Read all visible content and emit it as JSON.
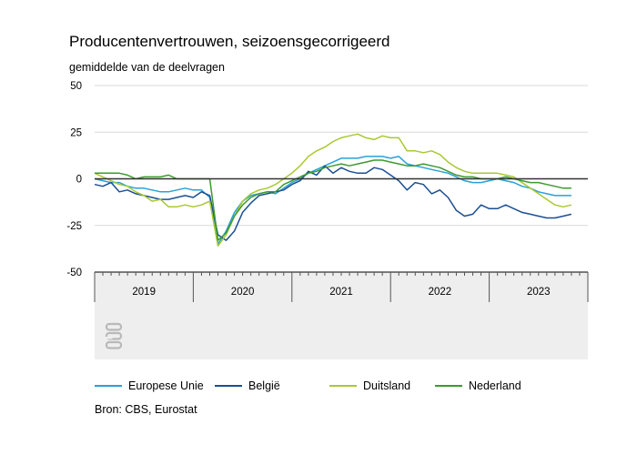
{
  "colors": {
    "europese_unie": "#29a1d9",
    "belgie": "#1c4f93",
    "duitsland": "#a8c931",
    "nederland": "#3d9a2f",
    "zero_line": "#333333",
    "grid": "#d9d9d9",
    "axis_band": "#eeeeee"
  },
  "logo_icon": "cbs-logo-icon",
  "chart_data": {
    "type": "line",
    "title": "Producentenvertrouwen, seizoensgecorrigeerd",
    "ylabel": "gemiddelde van de deelvragen",
    "ylim": [
      -50,
      50
    ],
    "yticks": [
      50,
      25,
      0,
      -25,
      -50
    ],
    "xlim": [
      "2019-01",
      "2023-12"
    ],
    "year_labels": [
      "2019",
      "2020",
      "2021",
      "2022",
      "2023"
    ],
    "source": "Bron: CBS, Eurostat",
    "legend_position": "bottom",
    "series": [
      {
        "name": "Europese Unie",
        "color_key": "europese_unie",
        "values": [
          [
            "2019-01",
            0
          ],
          [
            "2019-02",
            -1
          ],
          [
            "2019-03",
            -2
          ],
          [
            "2019-04",
            -2
          ],
          [
            "2019-05",
            -4
          ],
          [
            "2019-06",
            -5
          ],
          [
            "2019-07",
            -5
          ],
          [
            "2019-08",
            -6
          ],
          [
            "2019-09",
            -7
          ],
          [
            "2019-10",
            -7
          ],
          [
            "2019-11",
            -6
          ],
          [
            "2019-12",
            -5
          ],
          [
            "2020-01",
            -6
          ],
          [
            "2020-02",
            -6
          ],
          [
            "2020-03",
            -10
          ],
          [
            "2020-04",
            -35
          ],
          [
            "2020-05",
            -28
          ],
          [
            "2020-06",
            -18
          ],
          [
            "2020-07",
            -12
          ],
          [
            "2020-08",
            -9
          ],
          [
            "2020-09",
            -8
          ],
          [
            "2020-10",
            -7
          ],
          [
            "2020-11",
            -8
          ],
          [
            "2020-12",
            -5
          ],
          [
            "2021-01",
            -2
          ],
          [
            "2021-02",
            0
          ],
          [
            "2021-03",
            3
          ],
          [
            "2021-04",
            5
          ],
          [
            "2021-05",
            7
          ],
          [
            "2021-06",
            9
          ],
          [
            "2021-07",
            11
          ],
          [
            "2021-08",
            11
          ],
          [
            "2021-09",
            11
          ],
          [
            "2021-10",
            12
          ],
          [
            "2021-11",
            12
          ],
          [
            "2021-12",
            12
          ],
          [
            "2022-01",
            11
          ],
          [
            "2022-02",
            12
          ],
          [
            "2022-03",
            8
          ],
          [
            "2022-04",
            7
          ],
          [
            "2022-05",
            6
          ],
          [
            "2022-06",
            5
          ],
          [
            "2022-07",
            4
          ],
          [
            "2022-08",
            3
          ],
          [
            "2022-09",
            1
          ],
          [
            "2022-10",
            -1
          ],
          [
            "2022-11",
            -2
          ],
          [
            "2022-12",
            -2
          ],
          [
            "2023-01",
            -1
          ],
          [
            "2023-02",
            0
          ],
          [
            "2023-03",
            -1
          ],
          [
            "2023-04",
            -2
          ],
          [
            "2023-05",
            -4
          ],
          [
            "2023-06",
            -5
          ],
          [
            "2023-07",
            -7
          ],
          [
            "2023-08",
            -8
          ],
          [
            "2023-09",
            -9
          ],
          [
            "2023-10",
            -9
          ],
          [
            "2023-11",
            -9
          ]
        ]
      },
      {
        "name": "België",
        "color_key": "belgie",
        "values": [
          [
            "2019-01",
            -3
          ],
          [
            "2019-02",
            -4
          ],
          [
            "2019-03",
            -2
          ],
          [
            "2019-04",
            -7
          ],
          [
            "2019-05",
            -6
          ],
          [
            "2019-06",
            -8
          ],
          [
            "2019-07",
            -9
          ],
          [
            "2019-08",
            -10
          ],
          [
            "2019-09",
            -11
          ],
          [
            "2019-10",
            -11
          ],
          [
            "2019-11",
            -10
          ],
          [
            "2019-12",
            -9
          ],
          [
            "2020-01",
            -10
          ],
          [
            "2020-02",
            -7
          ],
          [
            "2020-03",
            -9
          ],
          [
            "2020-04",
            -30
          ],
          [
            "2020-05",
            -33
          ],
          [
            "2020-06",
            -28
          ],
          [
            "2020-07",
            -18
          ],
          [
            "2020-08",
            -13
          ],
          [
            "2020-09",
            -9
          ],
          [
            "2020-10",
            -8
          ],
          [
            "2020-11",
            -7
          ],
          [
            "2020-12",
            -6
          ],
          [
            "2021-01",
            -3
          ],
          [
            "2021-02",
            -1
          ],
          [
            "2021-03",
            4
          ],
          [
            "2021-04",
            2
          ],
          [
            "2021-05",
            7
          ],
          [
            "2021-06",
            3
          ],
          [
            "2021-07",
            6
          ],
          [
            "2021-08",
            4
          ],
          [
            "2021-09",
            3
          ],
          [
            "2021-10",
            3
          ],
          [
            "2021-11",
            6
          ],
          [
            "2021-12",
            5
          ],
          [
            "2022-01",
            2
          ],
          [
            "2022-02",
            -1
          ],
          [
            "2022-03",
            -6
          ],
          [
            "2022-04",
            -2
          ],
          [
            "2022-05",
            -3
          ],
          [
            "2022-06",
            -8
          ],
          [
            "2022-07",
            -6
          ],
          [
            "2022-08",
            -10
          ],
          [
            "2022-09",
            -17
          ],
          [
            "2022-10",
            -20
          ],
          [
            "2022-11",
            -19
          ],
          [
            "2022-12",
            -14
          ],
          [
            "2023-01",
            -16
          ],
          [
            "2023-02",
            -16
          ],
          [
            "2023-03",
            -14
          ],
          [
            "2023-04",
            -16
          ],
          [
            "2023-05",
            -18
          ],
          [
            "2023-06",
            -19
          ],
          [
            "2023-07",
            -20
          ],
          [
            "2023-08",
            -21
          ],
          [
            "2023-09",
            -21
          ],
          [
            "2023-10",
            -20
          ],
          [
            "2023-11",
            -19
          ]
        ]
      },
      {
        "name": "Duitsland",
        "color_key": "duitsland",
        "values": [
          [
            "2019-01",
            3
          ],
          [
            "2019-02",
            1
          ],
          [
            "2019-03",
            -1
          ],
          [
            "2019-04",
            -3
          ],
          [
            "2019-05",
            -4
          ],
          [
            "2019-06",
            -7
          ],
          [
            "2019-07",
            -9
          ],
          [
            "2019-08",
            -12
          ],
          [
            "2019-09",
            -11
          ],
          [
            "2019-10",
            -15
          ],
          [
            "2019-11",
            -15
          ],
          [
            "2019-12",
            -14
          ],
          [
            "2020-01",
            -15
          ],
          [
            "2020-02",
            -14
          ],
          [
            "2020-03",
            -12
          ],
          [
            "2020-04",
            -36
          ],
          [
            "2020-05",
            -30
          ],
          [
            "2020-06",
            -20
          ],
          [
            "2020-07",
            -12
          ],
          [
            "2020-08",
            -8
          ],
          [
            "2020-09",
            -6
          ],
          [
            "2020-10",
            -5
          ],
          [
            "2020-11",
            -3
          ],
          [
            "2020-12",
            0
          ],
          [
            "2021-01",
            3
          ],
          [
            "2021-02",
            7
          ],
          [
            "2021-03",
            12
          ],
          [
            "2021-04",
            15
          ],
          [
            "2021-05",
            17
          ],
          [
            "2021-06",
            20
          ],
          [
            "2021-07",
            22
          ],
          [
            "2021-08",
            23
          ],
          [
            "2021-09",
            24
          ],
          [
            "2021-10",
            22
          ],
          [
            "2021-11",
            21
          ],
          [
            "2021-12",
            23
          ],
          [
            "2022-01",
            22
          ],
          [
            "2022-02",
            22
          ],
          [
            "2022-03",
            15
          ],
          [
            "2022-04",
            15
          ],
          [
            "2022-05",
            14
          ],
          [
            "2022-06",
            15
          ],
          [
            "2022-07",
            13
          ],
          [
            "2022-08",
            9
          ],
          [
            "2022-09",
            6
          ],
          [
            "2022-10",
            4
          ],
          [
            "2022-11",
            3
          ],
          [
            "2022-12",
            3
          ],
          [
            "2023-01",
            3
          ],
          [
            "2023-02",
            3
          ],
          [
            "2023-03",
            2
          ],
          [
            "2023-04",
            1
          ],
          [
            "2023-05",
            -2
          ],
          [
            "2023-06",
            -5
          ],
          [
            "2023-07",
            -8
          ],
          [
            "2023-08",
            -11
          ],
          [
            "2023-09",
            -14
          ],
          [
            "2023-10",
            -15
          ],
          [
            "2023-11",
            -14
          ]
        ]
      },
      {
        "name": "Nederland",
        "color_key": "nederland",
        "values": [
          [
            "2019-01",
            3
          ],
          [
            "2019-02",
            3
          ],
          [
            "2019-03",
            3
          ],
          [
            "2019-04",
            3
          ],
          [
            "2019-05",
            2
          ],
          [
            "2019-06",
            0
          ],
          [
            "2019-07",
            1
          ],
          [
            "2019-08",
            1
          ],
          [
            "2019-09",
            1
          ],
          [
            "2019-10",
            2
          ],
          [
            "2019-11",
            0
          ],
          [
            "2019-12",
            0
          ],
          [
            "2020-01",
            0
          ],
          [
            "2020-02",
            0
          ],
          [
            "2020-03",
            0
          ],
          [
            "2020-04",
            -33
          ],
          [
            "2020-05",
            -29
          ],
          [
            "2020-06",
            -20
          ],
          [
            "2020-07",
            -14
          ],
          [
            "2020-08",
            -10
          ],
          [
            "2020-09",
            -8
          ],
          [
            "2020-10",
            -7
          ],
          [
            "2020-11",
            -7
          ],
          [
            "2020-12",
            -3
          ],
          [
            "2021-01",
            -1
          ],
          [
            "2021-02",
            1
          ],
          [
            "2021-03",
            3
          ],
          [
            "2021-04",
            4
          ],
          [
            "2021-05",
            6
          ],
          [
            "2021-06",
            7
          ],
          [
            "2021-07",
            8
          ],
          [
            "2021-08",
            7
          ],
          [
            "2021-09",
            8
          ],
          [
            "2021-10",
            9
          ],
          [
            "2021-11",
            10
          ],
          [
            "2021-12",
            10
          ],
          [
            "2022-01",
            9
          ],
          [
            "2022-02",
            8
          ],
          [
            "2022-03",
            7
          ],
          [
            "2022-04",
            7
          ],
          [
            "2022-05",
            8
          ],
          [
            "2022-06",
            7
          ],
          [
            "2022-07",
            6
          ],
          [
            "2022-08",
            4
          ],
          [
            "2022-09",
            2
          ],
          [
            "2022-10",
            1
          ],
          [
            "2022-11",
            1
          ],
          [
            "2022-12",
            0
          ],
          [
            "2023-01",
            0
          ],
          [
            "2023-02",
            0
          ],
          [
            "2023-03",
            1
          ],
          [
            "2023-04",
            0
          ],
          [
            "2023-05",
            -1
          ],
          [
            "2023-06",
            -2
          ],
          [
            "2023-07",
            -2
          ],
          [
            "2023-08",
            -3
          ],
          [
            "2023-09",
            -4
          ],
          [
            "2023-10",
            -5
          ],
          [
            "2023-11",
            -5
          ]
        ]
      }
    ]
  }
}
